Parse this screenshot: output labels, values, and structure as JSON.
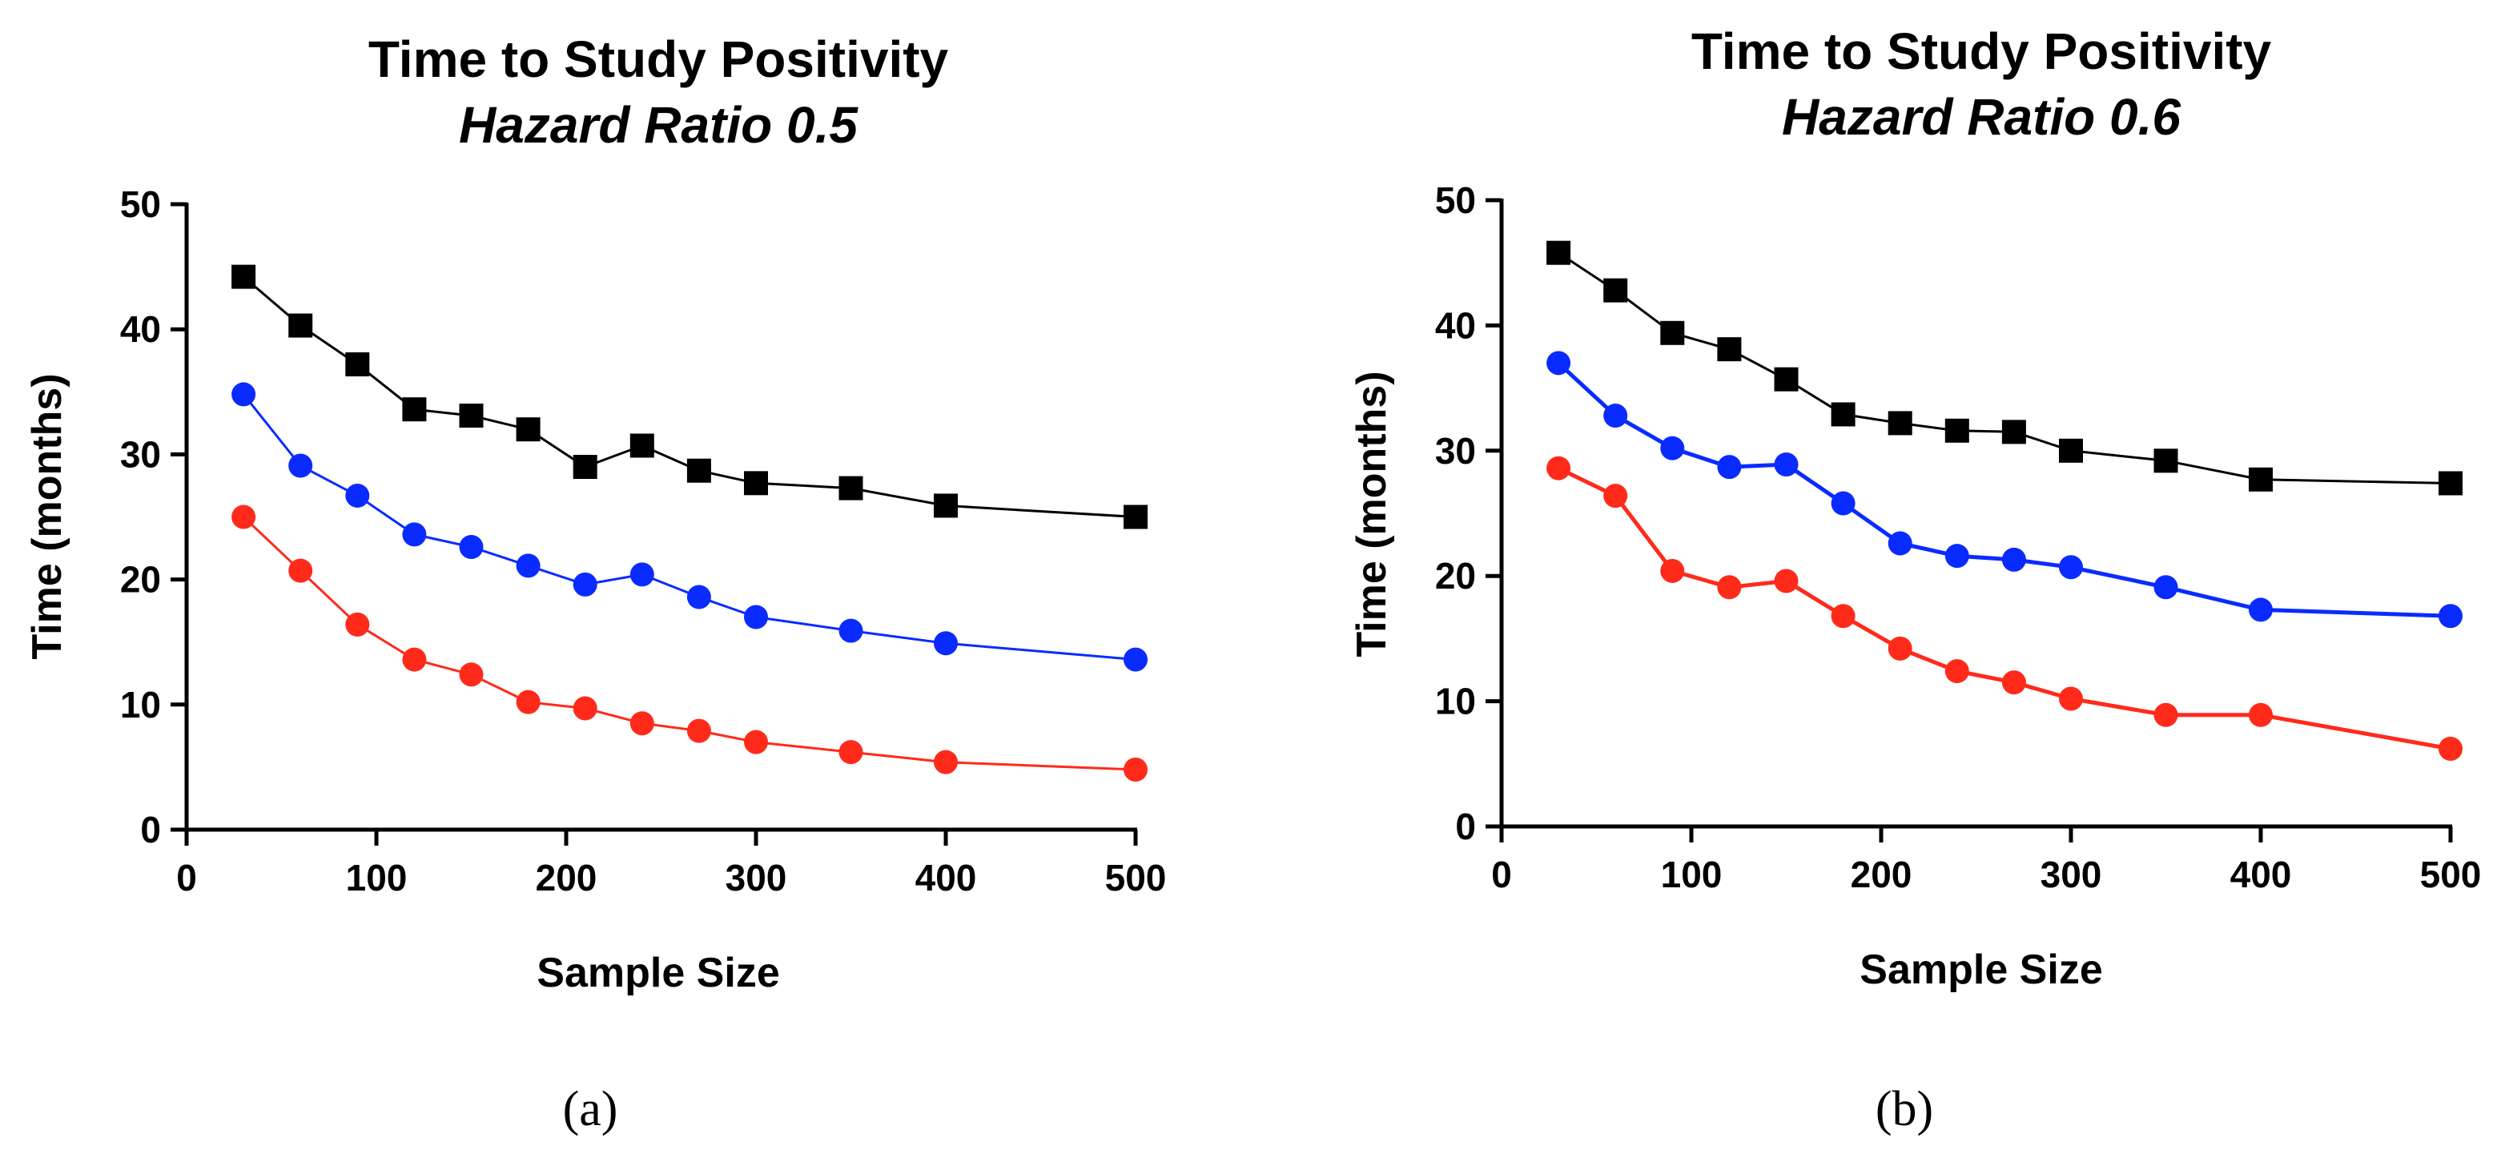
{
  "chart_data": [
    {
      "type": "line",
      "panel_label": "(a)",
      "title": "Time to Study Positivity",
      "subtitle": "Hazard Ratio 0.5",
      "xlabel": "Sample Size",
      "ylabel": "Time (months)",
      "xlim": [
        0,
        500
      ],
      "ylim": [
        0,
        50
      ],
      "xticks": [
        0,
        100,
        200,
        300,
        400,
        500
      ],
      "yticks": [
        0,
        10,
        20,
        30,
        40,
        50
      ],
      "grid": false,
      "x": [
        30,
        60,
        90,
        120,
        150,
        180,
        210,
        240,
        270,
        300,
        350,
        400,
        500
      ],
      "series": [
        {
          "name": "black",
          "color": "#000000",
          "marker": "square",
          "values": [
            44.2,
            40.3,
            37.2,
            33.6,
            33.1,
            32.0,
            29.0,
            30.7,
            28.7,
            27.7,
            27.3,
            25.9,
            25.0
          ]
        },
        {
          "name": "blue",
          "color": "#0a2bff",
          "marker": "circle",
          "values": [
            34.8,
            29.1,
            26.7,
            23.6,
            22.6,
            21.1,
            19.6,
            20.4,
            18.6,
            17.0,
            15.9,
            14.9,
            13.6
          ]
        },
        {
          "name": "red",
          "color": "#ff2a1a",
          "marker": "circle",
          "values": [
            25.0,
            20.7,
            16.4,
            13.6,
            12.4,
            10.2,
            9.7,
            8.5,
            7.9,
            7.0,
            6.2,
            5.4,
            4.8
          ]
        }
      ]
    },
    {
      "type": "line",
      "panel_label": "(b)",
      "title": "Time to Study Positivity",
      "subtitle": "Hazard Ratio 0.6",
      "xlabel": "Sample Size",
      "ylabel": "Time (months)",
      "xlim": [
        0,
        500
      ],
      "ylim": [
        0,
        50
      ],
      "xticks": [
        0,
        100,
        200,
        300,
        400,
        500
      ],
      "yticks": [
        0,
        10,
        20,
        30,
        40,
        50
      ],
      "grid": false,
      "x": [
        30,
        60,
        90,
        120,
        150,
        180,
        210,
        240,
        270,
        300,
        350,
        400,
        500
      ],
      "series": [
        {
          "name": "black",
          "color": "#000000",
          "marker": "square",
          "values": [
            45.8,
            42.8,
            39.4,
            38.1,
            35.7,
            32.9,
            32.2,
            31.6,
            31.5,
            30.0,
            29.2,
            27.7,
            27.4
          ]
        },
        {
          "name": "blue",
          "color": "#0a2bff",
          "marker": "circle",
          "values": [
            37.0,
            32.8,
            30.2,
            28.7,
            28.9,
            25.8,
            22.6,
            21.6,
            21.3,
            20.7,
            19.1,
            17.3,
            16.8
          ]
        },
        {
          "name": "red",
          "color": "#ff2a1a",
          "marker": "circle",
          "values": [
            28.6,
            26.4,
            20.4,
            19.1,
            19.6,
            16.8,
            14.2,
            12.4,
            11.5,
            10.2,
            8.9,
            8.9,
            6.2
          ]
        }
      ]
    }
  ]
}
